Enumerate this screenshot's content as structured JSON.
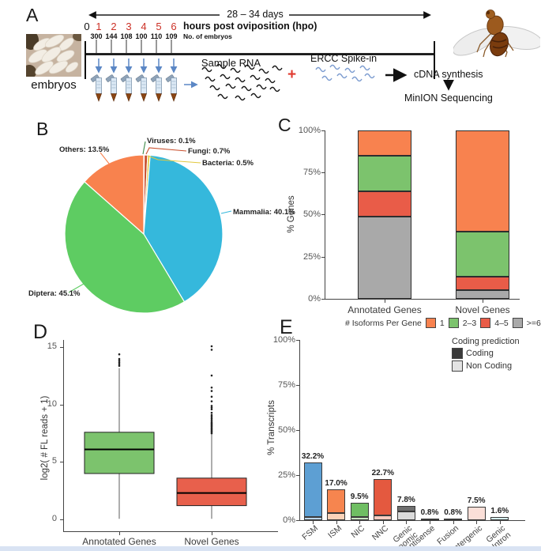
{
  "panels": {
    "A": {
      "label": "A",
      "embryos_caption": "embryos",
      "duration_label": "28 – 34 days",
      "timeline_title": "hours post oviposition (hpo)",
      "timepoints": [
        "0",
        "1",
        "2",
        "3",
        "4",
        "5",
        "6"
      ],
      "embryo_counts": [
        "300",
        "144",
        "108",
        "100",
        "110",
        "109"
      ],
      "embryo_counts_label": "No. of embryos",
      "sample_rna_label": "Sample RNA",
      "plus_sign": "+",
      "ercc_label": "ERCC Spike-in",
      "cdna_label": "cDNA synthesis",
      "minion_label": "MinION Sequencing"
    },
    "B": {
      "label": "B"
    },
    "C": {
      "label": "C"
    },
    "D": {
      "label": "D"
    },
    "E": {
      "label": "E"
    }
  },
  "chart_data": [
    {
      "panel": "B",
      "type": "pie",
      "start_angle_deg": 0,
      "clockwise": true,
      "slices": [
        {
          "name": "Viruses",
          "value": 0.1,
          "label": "Viruses: 0.1%",
          "color": "#3E8A47"
        },
        {
          "name": "Fungi",
          "value": 0.7,
          "label": "Fungi: 0.7%",
          "color": "#C9502E"
        },
        {
          "name": "Bacteria",
          "value": 0.5,
          "label": "Bacteria: 0.5%",
          "color": "#E2C83F"
        },
        {
          "name": "Mammalia",
          "value": 40.1,
          "label": "Mammalia: 40.1%",
          "color": "#35B8DC"
        },
        {
          "name": "Diptera",
          "value": 45.1,
          "label": "Diptera: 45.1%",
          "color": "#5ECC62"
        },
        {
          "name": "Others",
          "value": 13.5,
          "label": "Others: 13.5%",
          "color": "#F8824E"
        }
      ]
    },
    {
      "panel": "C",
      "type": "bar",
      "stacked": true,
      "categories": [
        "Annotated Genes",
        "Novel Genes"
      ],
      "series": [
        {
          "name": ">=6",
          "color": "#A9A9A9",
          "values": [
            49,
            5
          ]
        },
        {
          "name": "4–5",
          "color": "#E95C48",
          "values": [
            15,
            8
          ]
        },
        {
          "name": "2–3",
          "color": "#7CC36D",
          "values": [
            21,
            27
          ]
        },
        {
          "name": "1",
          "color": "#F8824F",
          "values": [
            15,
            60
          ]
        }
      ],
      "legend_title": "# Isoforms Per Gene",
      "ylabel": "% Genes",
      "yticks": [
        "0%",
        "25%",
        "50%",
        "75%",
        "100%"
      ],
      "ylim": [
        0,
        100
      ]
    },
    {
      "panel": "D",
      "type": "box",
      "categories": [
        "Annotated Genes",
        "Novel Genes"
      ],
      "ylabel": "log2( # FL reads + 1)",
      "yticks": [
        0,
        5,
        10,
        15
      ],
      "ylim": [
        0,
        15.8
      ],
      "boxes": [
        {
          "category": "Annotated Genes",
          "color": "#7CC36D",
          "whisker_low": 0.05,
          "q1": 4.0,
          "median": 6.1,
          "q3": 7.6,
          "whisker_high": 13.2,
          "outliers": [
            13.4,
            13.55,
            13.7,
            13.85,
            14.0,
            14.4
          ]
        },
        {
          "category": "Novel Genes",
          "color": "#E8604C",
          "whisker_low": 0.05,
          "q1": 1.2,
          "median": 2.3,
          "q3": 3.6,
          "whisker_high": 7.4,
          "outliers": [
            7.5,
            7.6,
            7.7,
            7.8,
            7.9,
            8.0,
            8.1,
            8.2,
            8.3,
            8.4,
            8.5,
            8.65,
            8.8,
            8.95,
            9.1,
            9.3,
            9.6,
            9.75,
            9.9,
            10.3,
            10.7,
            11.2,
            11.5,
            12.55,
            14.8,
            15.1
          ]
        }
      ]
    },
    {
      "panel": "E",
      "type": "bar",
      "stacked": true,
      "categories": [
        "FSM",
        "ISM",
        "NIC",
        "NNC",
        "Genic\nGenomic",
        "Antisense",
        "Fusion",
        "Intergenic",
        "Genic\nIntron"
      ],
      "totals": [
        32.2,
        17.0,
        9.5,
        22.7,
        7.8,
        0.8,
        0.8,
        7.5,
        1.6
      ],
      "bar_labels": [
        "32.2%",
        "17.0%",
        "9.5%",
        "22.7%",
        "7.8%",
        "0.8%",
        "0.8%",
        "7.5%",
        "1.6%"
      ],
      "series": [
        {
          "name": "Non Coding",
          "values": [
            1.8,
            4.0,
            1.8,
            2.5,
            4.8,
            0.55,
            0.0,
            7.5,
            1.6
          ],
          "colors": [
            "#BBD7EC",
            "#FBD3B9",
            "#CBE6C3",
            "#F7CBC0",
            "#DBDBDB",
            "#CFCFCF",
            "#C9A43A",
            "#FBDFD8",
            "#D6EFEF"
          ]
        },
        {
          "name": "Coding",
          "values": [
            30.4,
            13.0,
            7.7,
            20.2,
            3.0,
            0.25,
            0.8,
            0.0,
            0.0
          ],
          "colors": [
            "#5D9FD3",
            "#F6854F",
            "#6FBE63",
            "#E4593F",
            "#6F6F6F",
            "#7A7A7A",
            "#BE992B",
            "#E8B7A8",
            "#BFE3E3"
          ]
        }
      ],
      "ylabel": "% Transcripts",
      "yticks": [
        "0%",
        "25%",
        "50%",
        "75%",
        "100%"
      ],
      "legend": {
        "title": "Coding prediction",
        "items": [
          {
            "label": "Coding",
            "color": "#3A3A3A"
          },
          {
            "label": "Non Coding",
            "color": "#E3E3E3"
          }
        ]
      }
    }
  ]
}
